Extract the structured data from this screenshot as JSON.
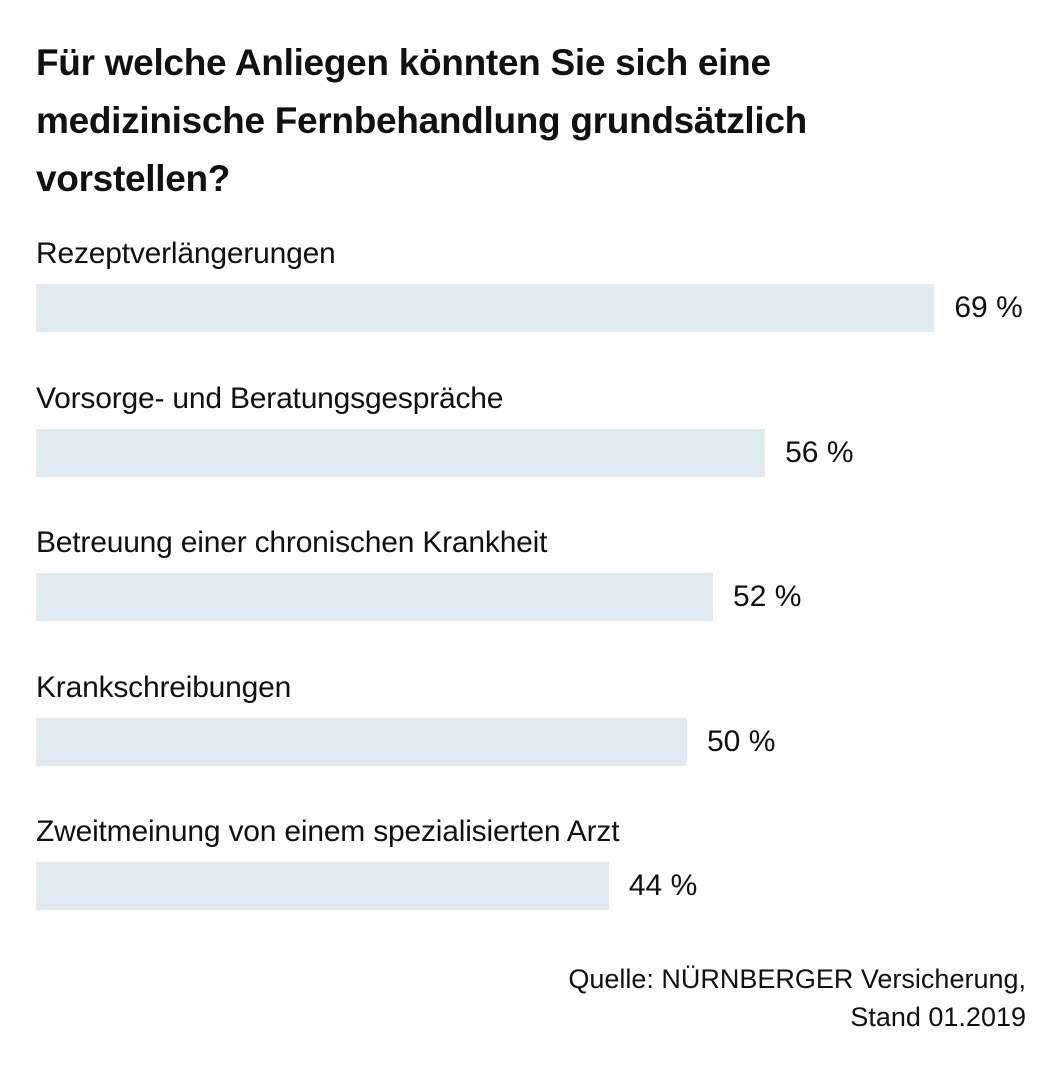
{
  "colors": {
    "bar": "#e0eaf1",
    "text": "#111111",
    "background": "#ffffff"
  },
  "chart_data": {
    "type": "bar",
    "orientation": "horizontal",
    "title": "Für welche Anliegen könnten Sie sich eine medizinische Fernbehandlung grundsätzlich vorstellen?",
    "title_lines": [
      "Für welche Anliegen könnten Sie sich eine",
      "medizinische Fernbehandlung grundsätzlich",
      "vorstellen?"
    ],
    "categories": [
      "Rezeptverlängerungen",
      "Vorsorge- und Beratungsgespräche",
      "Betreuung einer chronischen Krankheit",
      "Krankschreibungen",
      "Zweitmeinung von einem spezialisierten Arzt"
    ],
    "values": [
      69,
      56,
      52,
      50,
      44
    ],
    "value_labels": [
      "69 %",
      "56 %",
      "52 %",
      "50 %",
      "44 %"
    ],
    "unit": "%",
    "xlim": [
      0,
      100
    ],
    "grid": false,
    "legend": "none",
    "xlabel": "",
    "ylabel": ""
  },
  "source": {
    "line1": "Quelle: NÜRNBERGER Versicherung,",
    "line2": "Stand 01.2019"
  }
}
